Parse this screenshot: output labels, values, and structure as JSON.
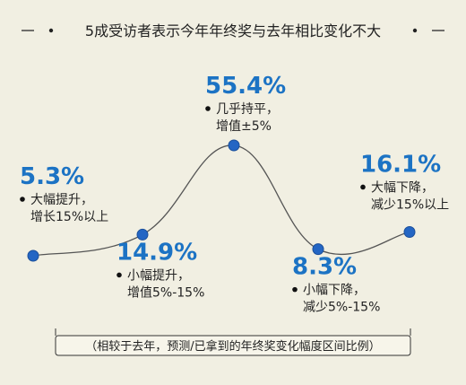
{
  "title": "5成受访者表示今年年终奖与去年相比变化不大",
  "footnote": "（相较于去年，预测/已拿到的年终奖变化幅度区间比例）",
  "colors": {
    "accent": "#1c73c4",
    "point": "#2466c4",
    "background": "#f1efe2"
  },
  "chart_data": {
    "type": "line",
    "title": "5成受访者表示今年年终奖与去年相比变化不大",
    "categories": [
      "大幅提升，增长15%以上",
      "小幅提升，增值5%-15%",
      "几乎持平，增值±5%",
      "小幅下降，减少5%-15%",
      "大幅下降，减少15%以上"
    ],
    "series": [
      {
        "values": [
          5.3,
          14.9,
          55.4,
          8.3,
          16.1
        ],
        "labels": [
          "5.3%",
          "14.9%",
          "55.4%",
          "8.3%",
          "16.1%"
        ],
        "descriptions": [
          [
            "大幅提升，",
            "增长15%以上"
          ],
          [
            "小幅提升，",
            "增值5%-15%"
          ],
          [
            "几乎持平，",
            "增值±5%"
          ],
          [
            "小幅下降，",
            "减少5%-15%"
          ],
          [
            "大幅下降，",
            "减少15%以上"
          ]
        ]
      }
    ],
    "ylim": [
      0,
      60
    ],
    "grid": false,
    "legend": "none"
  }
}
